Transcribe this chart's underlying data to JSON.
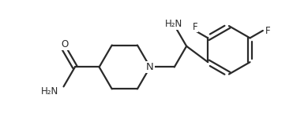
{
  "bg_color": "#ffffff",
  "line_color": "#2a2a2a",
  "line_width": 1.6,
  "font_size_label": 8.5,
  "figsize": [
    3.9,
    1.58
  ],
  "dpi": 100,
  "xlim": [
    0.0,
    7.8
  ],
  "ylim": [
    0.0,
    3.16
  ]
}
